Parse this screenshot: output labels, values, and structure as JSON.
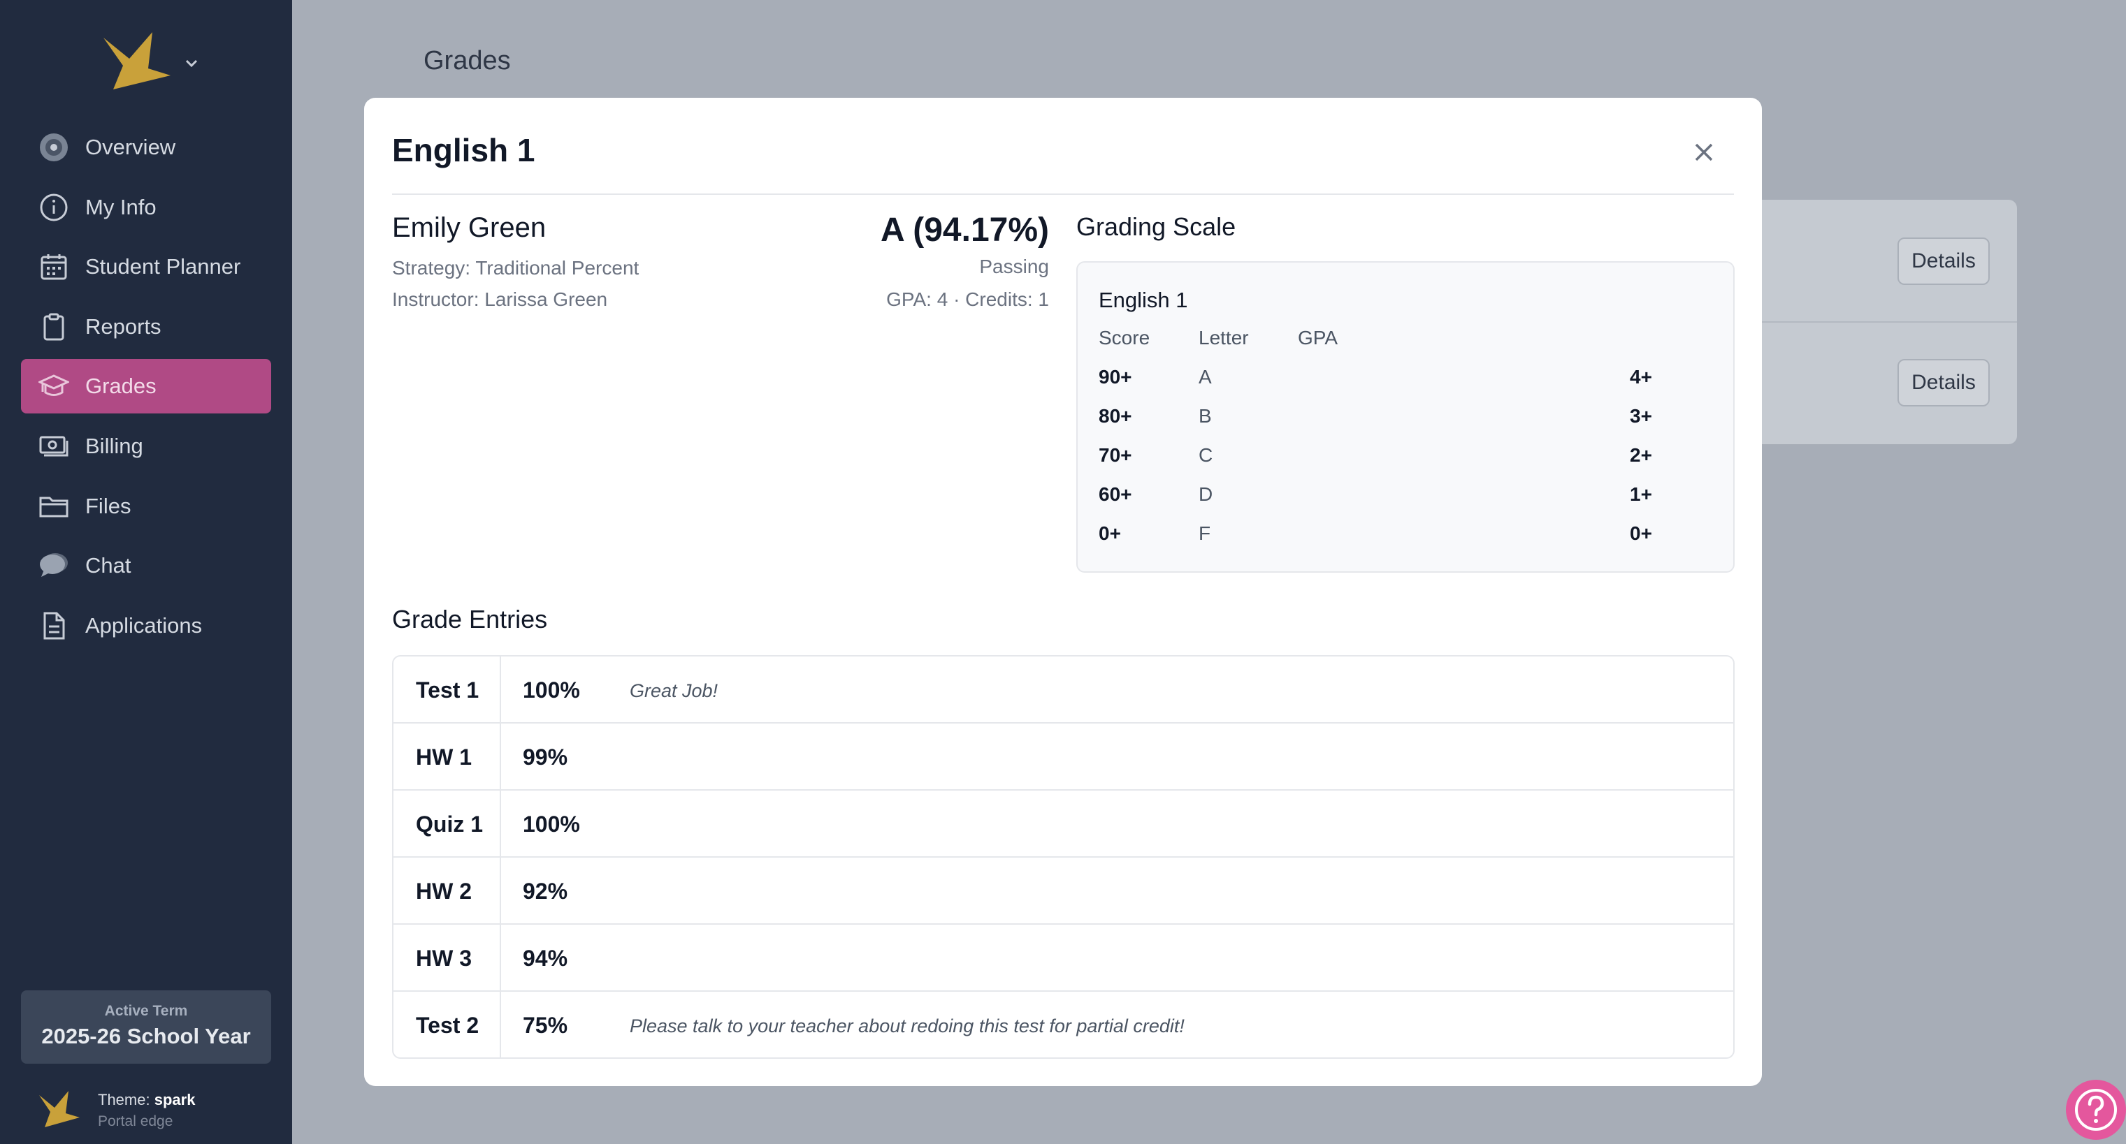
{
  "sidebar": {
    "items": [
      {
        "label": "Overview",
        "icon": "compass-icon"
      },
      {
        "label": "My Info",
        "icon": "info-icon"
      },
      {
        "label": "Student Planner",
        "icon": "calendar-icon"
      },
      {
        "label": "Reports",
        "icon": "clipboard-icon"
      },
      {
        "label": "Grades",
        "icon": "graduation-cap-icon",
        "active": true
      },
      {
        "label": "Billing",
        "icon": "money-icon"
      },
      {
        "label": "Files",
        "icon": "folder-icon"
      },
      {
        "label": "Chat",
        "icon": "chat-icon"
      },
      {
        "label": "Applications",
        "icon": "document-icon"
      }
    ],
    "term": {
      "label": "Active Term",
      "value": "2025-26 School Year"
    },
    "theme": {
      "prefix": "Theme:",
      "name": "spark",
      "sub": "Portal edge"
    }
  },
  "page": {
    "title": "Grades",
    "details_label": "Details"
  },
  "modal": {
    "title": "English 1",
    "student": "Emily Green",
    "strategy": "Strategy: Traditional Percent",
    "instructor": "Instructor: Larissa Green",
    "grade": "A (94.17%)",
    "status": "Passing",
    "gpa_credits": "GPA: 4 · Credits: 1",
    "grading_scale": {
      "title": "Grading Scale",
      "course": "English 1",
      "headers": [
        "Score",
        "Letter",
        "GPA"
      ],
      "rows": [
        {
          "score": "90+",
          "letter": "A",
          "gpa": "4+"
        },
        {
          "score": "80+",
          "letter": "B",
          "gpa": "3+"
        },
        {
          "score": "70+",
          "letter": "C",
          "gpa": "2+"
        },
        {
          "score": "60+",
          "letter": "D",
          "gpa": "1+"
        },
        {
          "score": "0+",
          "letter": "F",
          "gpa": "0+"
        }
      ]
    },
    "grade_entries": {
      "title": "Grade Entries",
      "rows": [
        {
          "name": "Test 1",
          "score": "100%",
          "comment": "Great Job!"
        },
        {
          "name": "HW 1",
          "score": "99%",
          "comment": ""
        },
        {
          "name": "Quiz 1",
          "score": "100%",
          "comment": ""
        },
        {
          "name": "HW 2",
          "score": "92%",
          "comment": ""
        },
        {
          "name": "HW 3",
          "score": "94%",
          "comment": ""
        },
        {
          "name": "Test 2",
          "score": "75%",
          "comment": "Please talk to your teacher about redoing this test for partial credit!"
        }
      ]
    }
  },
  "colors": {
    "sidebar_bg": "#212b3f",
    "active_nav": "#b04a85",
    "logo_gold": "#c9a13a",
    "help_button": "#e4579d"
  }
}
